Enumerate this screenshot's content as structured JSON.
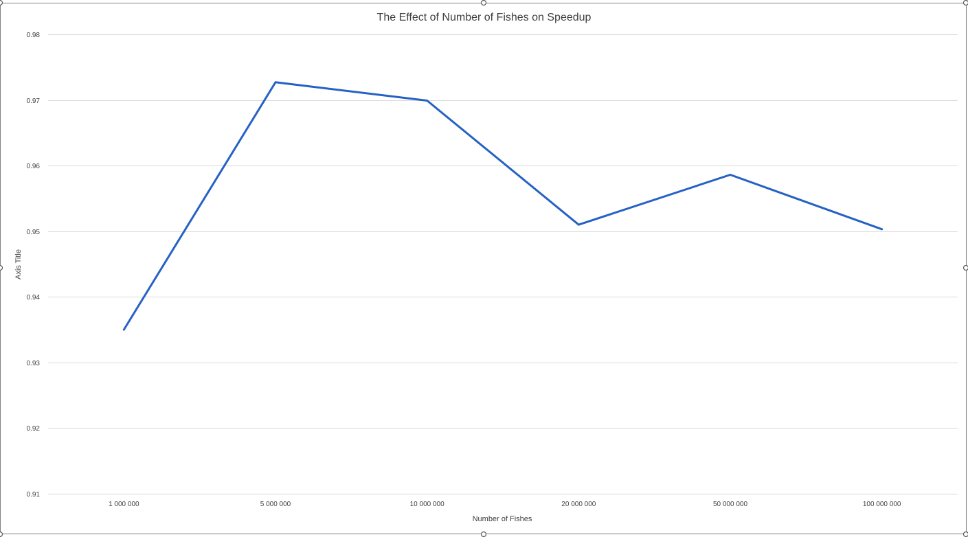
{
  "chart_data": {
    "type": "line",
    "title": "The Effect of Number of Fishes on Speedup",
    "xlabel": "Number of Fishes",
    "ylabel": "Axis Title",
    "categories": [
      "1 000 000",
      "5 000 000",
      "10 000 000",
      "20 000 000",
      "50 000 000",
      "100 000 000"
    ],
    "series": [
      {
        "values": [
          0.935,
          0.9727,
          0.9699,
          0.951,
          0.9586,
          0.9503
        ],
        "color": "#2662C4"
      }
    ],
    "ylim": [
      0.91,
      0.98
    ],
    "yticks": [
      "0.91",
      "0.92",
      "0.93",
      "0.94",
      "0.95",
      "0.96",
      "0.97",
      "0.98"
    ],
    "grid": true,
    "legend": "none"
  }
}
